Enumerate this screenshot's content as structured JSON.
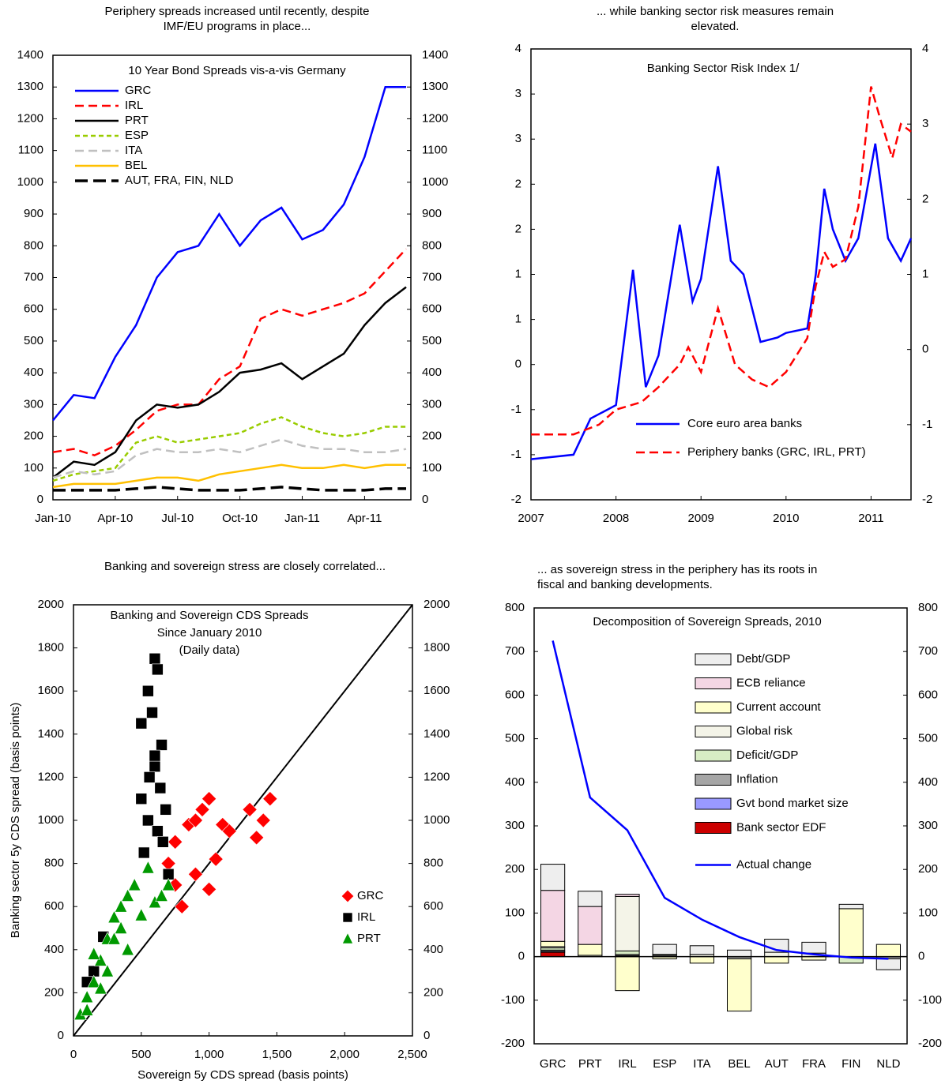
{
  "chart_data": [
    {
      "type": "line",
      "title": [
        "Periphery spreads increased until recently, despite",
        "IMF/EU programs in place..."
      ],
      "subtitle": [
        "10 Year Bond Spreads vis-a-vis Germany"
      ],
      "categories": [
        "Jan-10",
        null,
        null,
        "Apr-10",
        null,
        null,
        "Jul-10",
        null,
        null,
        "Oct-10",
        null,
        null,
        "Jan-11",
        null,
        null,
        "Apr-11",
        null,
        null
      ],
      "ylim": [
        0,
        1400
      ],
      "yticks": [
        0,
        100,
        200,
        300,
        400,
        500,
        600,
        700,
        800,
        900,
        1000,
        1100,
        1200,
        1300,
        1400
      ],
      "y2lim": [
        0,
        1400
      ],
      "y2ticks": [
        0,
        100,
        200,
        300,
        400,
        500,
        600,
        700,
        800,
        900,
        1000,
        1100,
        1200,
        1300,
        1400
      ],
      "series": [
        {
          "name": "GRC",
          "color": "#0000ff",
          "dash": "solid",
          "values": [
            250,
            330,
            320,
            450,
            550,
            700,
            780,
            800,
            900,
            800,
            880,
            920,
            820,
            850,
            930,
            1080,
            1300,
            1300
          ]
        },
        {
          "name": "IRL",
          "color": "#ff0000",
          "dash": "dashed",
          "values": [
            150,
            160,
            140,
            170,
            220,
            280,
            300,
            300,
            380,
            420,
            570,
            600,
            580,
            600,
            620,
            650,
            720,
            790
          ]
        },
        {
          "name": "PRT",
          "color": "#000000",
          "dash": "solid",
          "values": [
            70,
            120,
            110,
            150,
            250,
            300,
            290,
            300,
            340,
            400,
            410,
            430,
            380,
            420,
            460,
            550,
            620,
            670
          ]
        },
        {
          "name": "ESP",
          "color": "#99cc00",
          "dash": "dotted",
          "values": [
            60,
            80,
            90,
            100,
            180,
            200,
            180,
            190,
            200,
            210,
            240,
            260,
            230,
            210,
            200,
            210,
            230,
            230
          ]
        },
        {
          "name": "ITA",
          "color": "#c0c0c0",
          "dash": "dashed",
          "values": [
            70,
            90,
            80,
            90,
            140,
            160,
            150,
            150,
            160,
            150,
            170,
            190,
            170,
            160,
            160,
            150,
            150,
            160
          ]
        },
        {
          "name": "BEL",
          "color": "#ffc000",
          "dash": "solid",
          "values": [
            40,
            50,
            50,
            50,
            60,
            70,
            70,
            60,
            80,
            90,
            100,
            110,
            100,
            100,
            110,
            100,
            110,
            110
          ]
        },
        {
          "name": "AUT, FRA, FIN, NLD",
          "color": "#000000",
          "dash": "longdash",
          "values": [
            30,
            30,
            30,
            30,
            35,
            40,
            35,
            30,
            30,
            30,
            35,
            40,
            35,
            30,
            30,
            30,
            35,
            35
          ]
        }
      ]
    },
    {
      "type": "line",
      "title": [
        "... while banking sector risk measures  remain",
        "elevated."
      ],
      "subtitle": [
        "Banking Sector Risk Index 1/"
      ],
      "xlim": [
        2007,
        2011.47
      ],
      "xticks": [
        2007,
        2008,
        2009,
        2010,
        2011
      ],
      "ylim": [
        -1.5,
        3.5
      ],
      "yticks": [
        {
          "value": -1.5,
          "label": "-2"
        },
        {
          "value": -1,
          "label": "-1"
        },
        {
          "value": -0.5,
          "label": "-1"
        },
        0,
        {
          "value": 0.5,
          "label": "1"
        },
        1,
        {
          "value": 1.5,
          "label": "2"
        },
        2,
        {
          "value": 2.5,
          "label": "3"
        },
        3,
        {
          "value": 3.5,
          "label": "4"
        }
      ],
      "y2lim": [
        -2,
        4
      ],
      "y2ticks": [
        -2,
        -1,
        0,
        1,
        2,
        3,
        4
      ],
      "series": [
        {
          "name": "Core euro area banks",
          "color": "#0000ff",
          "dash": "solid",
          "x": [
            2007.0,
            2007.5,
            2007.7,
            2008.0,
            2008.2,
            2008.35,
            2008.5,
            2008.75,
            2008.9,
            2009.0,
            2009.2,
            2009.35,
            2009.5,
            2009.7,
            2009.9,
            2010.0,
            2010.25,
            2010.35,
            2010.45,
            2010.55,
            2010.7,
            2010.85,
            2011.05,
            2011.2,
            2011.35,
            2011.47
          ],
          "values": [
            -1.05,
            -1.0,
            -0.6,
            -0.45,
            1.05,
            -0.25,
            0.1,
            1.55,
            0.7,
            0.95,
            2.2,
            1.15,
            1.0,
            0.25,
            0.3,
            0.35,
            0.4,
            1.0,
            1.95,
            1.5,
            1.15,
            1.4,
            2.45,
            1.4,
            1.15,
            1.4
          ]
        },
        {
          "name": "Periphery banks (GRC, IRL, PRT)",
          "color": "#ff0000",
          "dash": "dashed",
          "axis": "y2",
          "x": [
            2007.0,
            2007.5,
            2007.8,
            2008.0,
            2008.3,
            2008.5,
            2008.75,
            2008.85,
            2009.0,
            2009.2,
            2009.4,
            2009.6,
            2009.8,
            2010.0,
            2010.25,
            2010.35,
            2010.45,
            2010.55,
            2010.7,
            2010.85,
            2011.0,
            2011.1,
            2011.25,
            2011.35,
            2011.47
          ],
          "values": [
            -1.13,
            -1.13,
            -1.0,
            -0.8,
            -0.7,
            -0.5,
            -0.2,
            0.03,
            -0.3,
            0.55,
            -0.2,
            -0.4,
            -0.5,
            -0.3,
            0.15,
            0.85,
            1.3,
            1.1,
            1.2,
            1.9,
            3.5,
            3.1,
            2.55,
            3.0,
            2.9
          ]
        }
      ]
    },
    {
      "type": "scatter",
      "title": [
        "Banking and sovereign stress are closely correlated..."
      ],
      "subtitle": [
        "Banking and Sovereign CDS  Spreads",
        "Since January 2010",
        "(Daily data)"
      ],
      "xlabel": "Sovereign 5y CDS spread (basis points)",
      "ylabel": "Banking sector 5y CDS spread (basis points)",
      "xlim": [
        0,
        2500
      ],
      "xticks": [
        0,
        500,
        {
          "value": 1000,
          "label": "1,000"
        },
        {
          "value": 1500,
          "label": "1,500"
        },
        {
          "value": 2000,
          "label": "2,000"
        },
        {
          "value": 2500,
          "label": "2,500"
        }
      ],
      "ylim": [
        0,
        2000
      ],
      "yticks": [
        0,
        200,
        400,
        600,
        800,
        1000,
        1200,
        1400,
        1600,
        1800,
        2000
      ],
      "y2lim": [
        0,
        2000
      ],
      "y2ticks": [
        0,
        200,
        400,
        600,
        800,
        1000,
        1200,
        1400,
        1600,
        1800,
        2000
      ],
      "series": [
        {
          "name": "GRC",
          "color": "#ff0000",
          "marker": "diamond",
          "x": [
            700,
            750,
            800,
            850,
            900,
            950,
            1000,
            1000,
            1050,
            1100,
            1150,
            1300,
            1350,
            1450,
            1400,
            900,
            750
          ],
          "values": [
            800,
            700,
            600,
            980,
            750,
            1050,
            1100,
            680,
            820,
            980,
            950,
            1050,
            920,
            1100,
            1000,
            1000,
            900
          ]
        },
        {
          "name": "IRL",
          "color": "#000000",
          "marker": "square",
          "x": [
            150,
            100,
            220,
            500,
            550,
            600,
            620,
            580,
            650,
            500,
            550,
            520,
            600,
            640,
            680,
            560,
            600,
            620,
            660,
            700
          ],
          "values": [
            300,
            250,
            460,
            1450,
            1600,
            1750,
            1700,
            1500,
            1350,
            1100,
            1000,
            850,
            1250,
            1150,
            1050,
            1200,
            1300,
            950,
            900,
            750
          ]
        },
        {
          "name": "PRT",
          "color": "#009900",
          "marker": "triangle",
          "x": [
            50,
            100,
            150,
            200,
            250,
            300,
            350,
            400,
            450,
            550,
            600,
            650,
            700,
            300,
            400,
            150,
            250,
            350,
            500,
            200,
            100
          ],
          "values": [
            100,
            180,
            250,
            350,
            450,
            550,
            600,
            650,
            700,
            780,
            620,
            650,
            700,
            450,
            400,
            380,
            300,
            500,
            560,
            220,
            120
          ]
        }
      ]
    },
    {
      "type": "bar",
      "stacked": true,
      "title": [
        "... as sovereign stress in the periphery has its roots in",
        "fiscal and banking developments."
      ],
      "subtitle": [
        "Decomposition of Sovereign Spreads, 2010"
      ],
      "categories": [
        "GRC",
        "PRT",
        "IRL",
        "ESP",
        "ITA",
        "BEL",
        "AUT",
        "FRA",
        "FIN",
        "NLD"
      ],
      "ylim": [
        -200,
        800
      ],
      "yticks": [
        -200,
        -100,
        0,
        100,
        200,
        300,
        400,
        500,
        600,
        700,
        800
      ],
      "y2lim": [
        -200,
        800
      ],
      "y2ticks": [
        -200,
        -100,
        0,
        100,
        200,
        300,
        400,
        500,
        600,
        700,
        800
      ],
      "series": [
        {
          "name": "Debt/GDP",
          "color": "#eeeeee",
          "values": [
            60,
            35,
            0,
            23,
            20,
            15,
            30,
            25,
            10,
            -25
          ]
        },
        {
          "name": "ECB reliance",
          "color": "#f4d6e4",
          "values": [
            117,
            87,
            5,
            0,
            0,
            0,
            0,
            0,
            0,
            0
          ]
        },
        {
          "name": "Current account",
          "color": "#ffffcc",
          "values": [
            12,
            25,
            -78,
            -5,
            -15,
            -120,
            -15,
            -8,
            110,
            28
          ]
        },
        {
          "name": "Global risk",
          "color": "#f4f4e8",
          "values": [
            3,
            3,
            125,
            0,
            5,
            0,
            10,
            8,
            0,
            0
          ]
        },
        {
          "name": "Deficit/GDP",
          "color": "#d8ecc4",
          "values": [
            5,
            0,
            8,
            2,
            0,
            0,
            0,
            0,
            -15,
            0
          ]
        },
        {
          "name": "Inflation",
          "color": "#a6a6a6",
          "values": [
            3,
            0,
            3,
            3,
            0,
            -5,
            0,
            0,
            0,
            -5
          ]
        },
        {
          "name": "Gvt bond market size",
          "color": "#9999ff",
          "values": [
            2,
            0,
            0,
            0,
            0,
            0,
            0,
            0,
            0,
            0
          ]
        },
        {
          "name": "Bank sector EDF",
          "color": "#cc0000",
          "values": [
            10,
            0,
            2,
            0,
            0,
            0,
            0,
            0,
            0,
            0
          ]
        }
      ],
      "line": {
        "name": "Actual change",
        "color": "#0000ff",
        "values": [
          725,
          365,
          290,
          135,
          85,
          45,
          15,
          5,
          -2,
          -5
        ]
      }
    }
  ]
}
